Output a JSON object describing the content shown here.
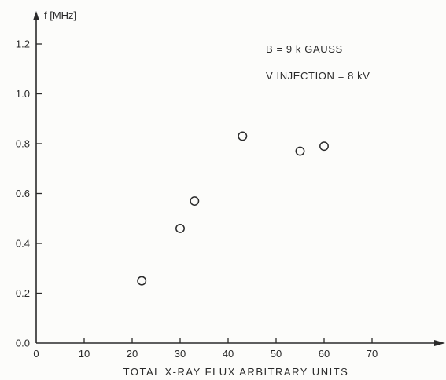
{
  "chart_data": {
    "type": "scatter",
    "xlabel": "TOTAL X-RAY FLUX ARBITRARY UNITS",
    "ylabel": "f [MHz]",
    "xlim": [
      0,
      78
    ],
    "ylim": [
      0,
      1.35
    ],
    "x_ticks": [
      "0",
      "10",
      "20",
      "30",
      "40",
      "50",
      "60",
      "70"
    ],
    "y_ticks": [
      "0.0",
      "0.2",
      "0.4",
      "0.6",
      "0.8",
      "1.0",
      "1.2"
    ],
    "annotations": [
      "B = 9 k GAUSS",
      "V INJECTION = 8 kV"
    ],
    "grid": false,
    "series": [
      {
        "marker": "open-circle",
        "points": [
          {
            "x": 22,
            "y": 0.25
          },
          {
            "x": 30,
            "y": 0.46
          },
          {
            "x": 33,
            "y": 0.57
          },
          {
            "x": 43,
            "y": 0.83
          },
          {
            "x": 55,
            "y": 0.77
          },
          {
            "x": 60,
            "y": 0.79
          }
        ]
      }
    ]
  },
  "colors": {
    "ink": "#2a2a2a",
    "background": "#fcfcfa"
  }
}
